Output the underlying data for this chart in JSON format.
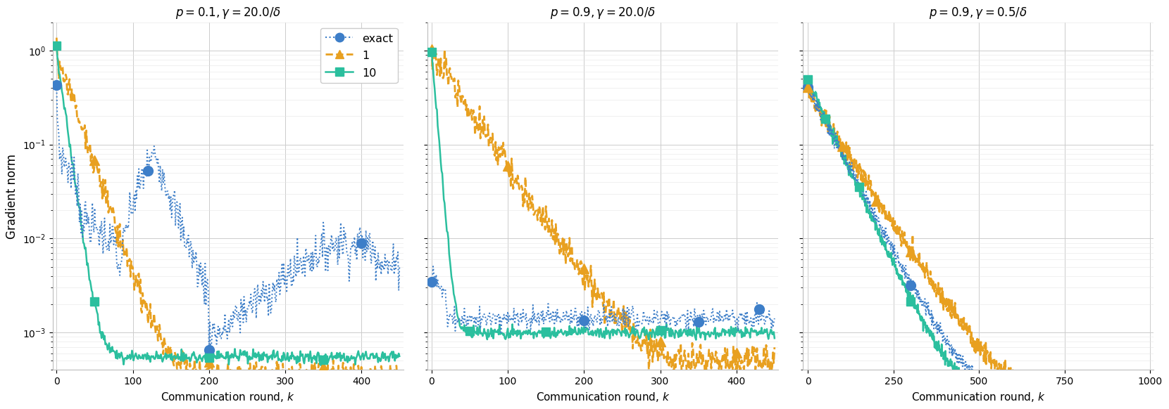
{
  "panels": [
    {
      "title": "$p = 0.1, \\gamma = 20.0/\\delta$",
      "xlim": [
        -5,
        455
      ],
      "xticks": [
        0,
        100,
        200,
        300,
        400
      ],
      "x_max": 450
    },
    {
      "title": "$p = 0.9, \\gamma = 20.0/\\delta$",
      "xlim": [
        -5,
        455
      ],
      "xticks": [
        0,
        100,
        200,
        300,
        400
      ],
      "x_max": 450
    },
    {
      "title": "$p = 0.9, \\gamma = 0.5/\\delta$",
      "xlim": [
        -15,
        1010
      ],
      "xticks": [
        0,
        250,
        500,
        750,
        1000
      ],
      "x_max": 1000
    }
  ],
  "colors": {
    "exact": "#3d7ec8",
    "one": "#e8a020",
    "ten": "#2bbf9e"
  },
  "ylim": [
    0.0004,
    2.0
  ],
  "ylabel": "Gradient norm",
  "xlabel": "Communication round, $k$"
}
